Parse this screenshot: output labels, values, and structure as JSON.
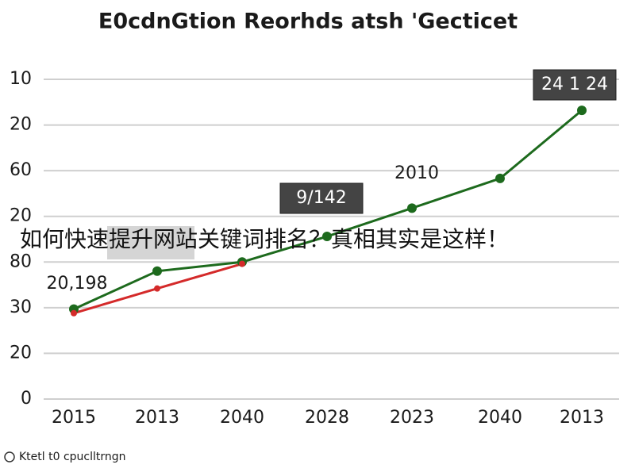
{
  "chart_data": {
    "type": "line",
    "title": "E0cdnGtion Reorhds atsh 'Gecticet",
    "categories": [
      "2015",
      "2013",
      "2040",
      "2028",
      "2023",
      "2040",
      "2013"
    ],
    "series": [
      {
        "color": "#1d6a1d",
        "values": [
          19.7,
          28,
          30,
          35.6,
          41.8,
          48.3,
          63.2
        ]
      },
      {
        "color": "#d42a2a",
        "values": [
          18.8,
          24.2,
          29.6,
          null,
          null,
          null,
          null
        ]
      }
    ],
    "ylim": [
      0,
      70
    ],
    "yticks": [
      0,
      {
        "value": 10,
        "label": "20"
      },
      {
        "value": 20,
        "label": "30"
      },
      {
        "value": 30,
        "label": "80"
      },
      {
        "value": 40,
        "label": "20"
      },
      {
        "value": 50,
        "label": "60"
      },
      {
        "value": 60,
        "label": "20"
      },
      {
        "value": 70,
        "label": "10"
      }
    ],
    "grid": true,
    "annotations": [
      "20,198",
      "9/142",
      "2010",
      "24 1 24"
    ],
    "overlay": "如何快速提升网站关键词排名？真相其实是这样！",
    "source": "Ktetl t0 cpuclltrngn"
  }
}
